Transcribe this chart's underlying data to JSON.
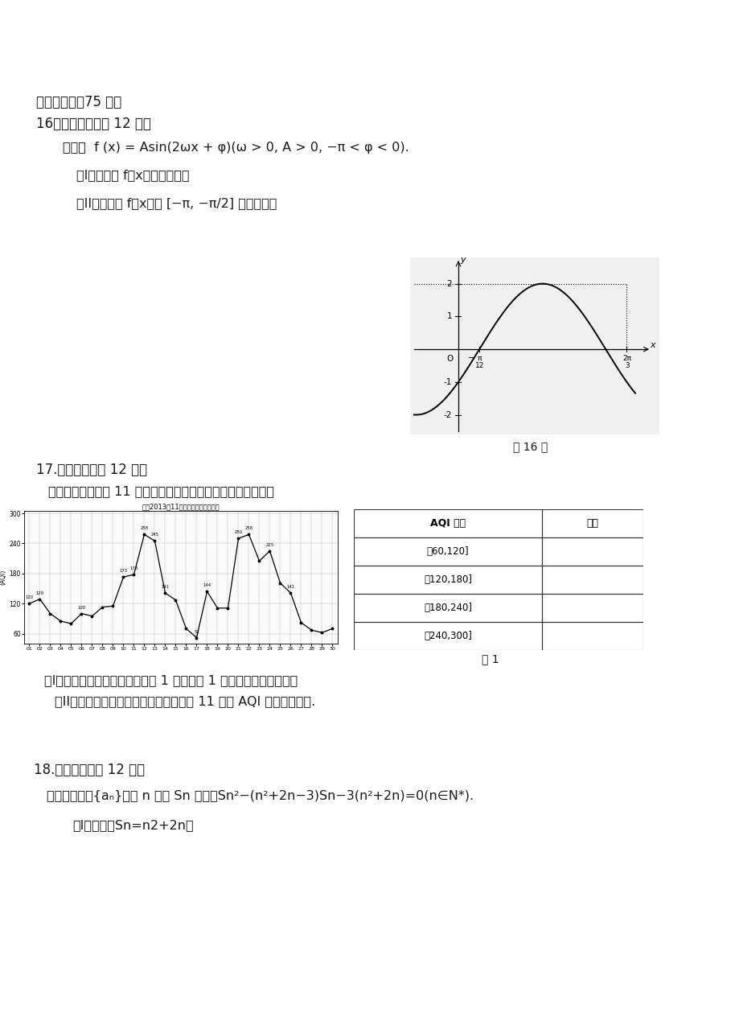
{
  "bg_color": "#ffffff",
  "section_title": "三、解答题（75 分）",
  "q16_title": "16、（本小题满分 12 分）",
  "q16_intro1": "如图，",
  "q16_formula": "f(x) = Asin(2ωx + φ)(ω > 0, A > 0, -π < φ < 0).",
  "q16_I": "（I）求函数 f（x）的解析式；",
  "q16_II": "（II）求函数 f（x）在",
  "q16_II2": "上的值域。",
  "q17_title": "17.（本小题满分 12 分）",
  "q17_intro": "合肥市环保总站对 11 月合肥市空气质量指数发布如下趋势图：",
  "q17_chart_title": "合肥2013年11月份空气质量指数趋势",
  "q17_I": "（I）请根据以上趋势图，完成表 1 并根据表 1 画出频率分布直方图，",
  "q17_II": "（II）试根据频率分布直方图估计合肥市 11 月份 AQI 指数的平均值.",
  "q18_title": "18.（本小题满分 12 分）",
  "q18_intro1": "已知正项数列",
  "q18_intro2": "的前 n 项和 Sn 满足：",
  "q18_formula": "Sn²−(n²+2n−3)Sn−3(n²+2n)=0(n∈N*).",
  "q18_I": "（I）求证：Sn=n2+2n；",
  "table_headers": [
    "AQI 指数",
    "天数"
  ],
  "table_rows": [
    "（60,120]",
    "（120,180]",
    "（180,240]",
    "（240,300]"
  ],
  "table_label": "表 1",
  "aqi_days": [
    1,
    2,
    3,
    4,
    5,
    6,
    7,
    8,
    9,
    10,
    11,
    12,
    13,
    14,
    15,
    16,
    17,
    18,
    19,
    20,
    21,
    22,
    23,
    24,
    25,
    26,
    27,
    28,
    29,
    30
  ],
  "aqi_vals": [
    120,
    129,
    100,
    85,
    80,
    100,
    95,
    113,
    115,
    173,
    178,
    258,
    245,
    141,
    127,
    70,
    52,
    144,
    111,
    111,
    250,
    258,
    205,
    225,
    161,
    141,
    82,
    67,
    62,
    70
  ]
}
